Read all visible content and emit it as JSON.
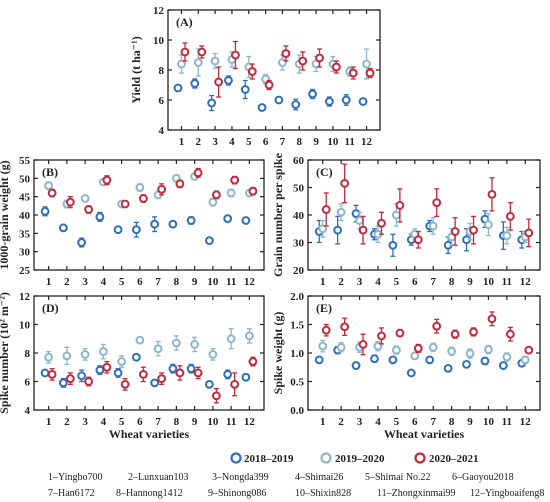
{
  "colors": {
    "s2018": "#2e6fb5",
    "s2019": "#8db6cc",
    "s2020": "#c22a3b"
  },
  "legend": [
    {
      "label": "2018–2019",
      "color": "#2e6fb5"
    },
    {
      "label": "2019–2020",
      "color": "#8db6cc"
    },
    {
      "label": "2020–2021",
      "color": "#c22a3b"
    }
  ],
  "varieties_key": [
    [
      "1–Yingbo700",
      "2–Lunxuan103",
      "3–Nongda399",
      "4–Shimai26",
      "5–Shimai No.22",
      "6–Gaoyou2018"
    ],
    [
      "7–Han6172",
      "8–Hannong1412",
      "9–Shinong086",
      "10–Shixin828",
      "11–Zhongxinmai99",
      "12–Yingboaifeng8"
    ]
  ],
  "chart_data": [
    {
      "id": "A",
      "type": "scatter",
      "panel_label": "(A)",
      "ylabel": "Yield (t ha⁻¹)",
      "xlabel": "",
      "ylim": [
        4,
        12
      ],
      "yticks": [
        4,
        6,
        8,
        10,
        12
      ],
      "x": [
        1,
        2,
        3,
        4,
        5,
        6,
        7,
        8,
        9,
        10,
        11,
        12
      ],
      "series": [
        {
          "name": "2018–2019",
          "values": [
            6.8,
            7.1,
            5.8,
            7.3,
            6.7,
            5.5,
            6.0,
            5.7,
            6.4,
            5.9,
            6.0,
            5.9
          ],
          "errors": [
            0.15,
            0.3,
            0.5,
            0.3,
            0.6,
            0.1,
            0.2,
            0.35,
            0.3,
            0.3,
            0.35,
            0.15
          ]
        },
        {
          "name": "2019–2020",
          "values": [
            8.4,
            8.5,
            8.6,
            8.7,
            8.2,
            7.4,
            8.5,
            8.4,
            8.4,
            8.4,
            7.9,
            8.4
          ],
          "errors": [
            0.6,
            0.9,
            0.5,
            0.5,
            0.7,
            0.3,
            0.5,
            0.6,
            0.5,
            0.5,
            0.3,
            1.0
          ]
        },
        {
          "name": "2020–2021",
          "values": [
            9.2,
            9.2,
            7.2,
            9.0,
            7.9,
            7.0,
            9.1,
            8.6,
            8.8,
            8.2,
            7.8,
            7.8
          ],
          "errors": [
            0.6,
            0.4,
            1.0,
            0.9,
            0.5,
            0.3,
            0.5,
            0.6,
            0.6,
            0.4,
            0.4,
            0.3
          ]
        }
      ]
    },
    {
      "id": "B",
      "type": "scatter",
      "panel_label": "(B)",
      "ylabel": "1000-grain weight (g)",
      "xlabel": "",
      "ylim": [
        25,
        55
      ],
      "yticks": [
        25,
        30,
        35,
        40,
        45,
        50,
        55
      ],
      "x": [
        1,
        2,
        3,
        4,
        5,
        6,
        7,
        8,
        9,
        10,
        11,
        12
      ],
      "series": [
        {
          "name": "2018–2019",
          "values": [
            41,
            36.5,
            32.5,
            39.5,
            36.0,
            36.0,
            37.5,
            37.5,
            38.5,
            33.0,
            39.0,
            38.5
          ],
          "errors": [
            1.2,
            0.8,
            1.2,
            1.2,
            0.5,
            2.0,
            2.0,
            0.8,
            1.0,
            0.6,
            0.5,
            0.5
          ]
        },
        {
          "name": "2019–2020",
          "values": [
            48,
            43,
            44.5,
            49,
            43,
            47.5,
            45.5,
            50,
            50.5,
            43.5,
            46,
            46
          ],
          "errors": [
            1,
            1,
            0.5,
            0.5,
            0.5,
            1,
            1,
            0.8,
            0.5,
            1,
            1,
            0.5
          ]
        },
        {
          "name": "2020–2021",
          "values": [
            46,
            43.5,
            41.5,
            49.5,
            43,
            44.5,
            47,
            48.5,
            51.5,
            45.5,
            49.5,
            46.5
          ],
          "errors": [
            1,
            1.5,
            1,
            1.2,
            0.5,
            1,
            1.5,
            1,
            1.2,
            1,
            1,
            1
          ]
        }
      ]
    },
    {
      "id": "C",
      "type": "scatter",
      "panel_label": "(C)",
      "ylabel": "Grain number per spike",
      "xlabel": "",
      "ylim": [
        20,
        60
      ],
      "yticks": [
        20,
        30,
        40,
        50,
        60
      ],
      "x": [
        1,
        2,
        3,
        4,
        5,
        6,
        7,
        8,
        9,
        10,
        11,
        12
      ],
      "series": [
        {
          "name": "2018–2019",
          "values": [
            34,
            34.5,
            40.5,
            33,
            29,
            31,
            36,
            29,
            31,
            38.5,
            32.5,
            31
          ],
          "errors": [
            4,
            5,
            3,
            2,
            4,
            2,
            2,
            3,
            4,
            3,
            5,
            3
          ]
        },
        {
          "name": "2019–2020",
          "values": [
            35,
            41,
            38,
            33,
            40,
            33,
            36,
            32,
            34,
            36.5,
            32.5,
            32
          ],
          "errors": [
            3,
            3,
            3,
            3,
            4,
            2,
            3,
            3,
            3,
            4,
            3,
            2
          ]
        },
        {
          "name": "2020–2021",
          "values": [
            42,
            51.5,
            34.5,
            37,
            43.5,
            31,
            44.5,
            34,
            34.5,
            47.5,
            39.5,
            33.5
          ],
          "errors": [
            6,
            7,
            5,
            4,
            6,
            3,
            5,
            5,
            5,
            6,
            5,
            5
          ]
        }
      ]
    },
    {
      "id": "D",
      "type": "scatter",
      "panel_label": "(D)",
      "ylabel": "Spike number (10² m⁻²)",
      "xlabel": "Wheat varieties",
      "ylim": [
        4,
        12
      ],
      "yticks": [
        4,
        6,
        8,
        10,
        12
      ],
      "x": [
        1,
        2,
        3,
        4,
        5,
        6,
        7,
        8,
        9,
        10,
        11,
        12
      ],
      "series": [
        {
          "name": "2018–2019",
          "values": [
            6.6,
            5.9,
            6.4,
            6.8,
            6.6,
            7.7,
            5.9,
            6.9,
            6.9,
            5.8,
            6.5,
            6.3
          ],
          "errors": [
            0.2,
            0.3,
            0.4,
            0.3,
            0.3,
            0.2,
            0.2,
            0.3,
            0.3,
            0.2,
            0.3,
            0.2
          ]
        },
        {
          "name": "2019–2020",
          "values": [
            7.7,
            7.8,
            7.9,
            8.1,
            7.4,
            8.9,
            8.3,
            8.7,
            8.6,
            7.9,
            9.0,
            9.2
          ],
          "errors": [
            0.4,
            0.6,
            0.4,
            0.5,
            0.4,
            0.2,
            0.5,
            0.5,
            0.5,
            0.4,
            0.7,
            0.5
          ]
        },
        {
          "name": "2020–2021",
          "values": [
            6.5,
            6.2,
            6.0,
            7.0,
            5.8,
            6.5,
            6.2,
            6.6,
            6.6,
            5.0,
            5.8,
            7.4
          ],
          "errors": [
            0.4,
            0.4,
            0.3,
            0.4,
            0.4,
            0.5,
            0.4,
            0.5,
            0.4,
            0.5,
            0.8,
            0.3
          ]
        }
      ]
    },
    {
      "id": "E",
      "type": "scatter",
      "panel_label": "(E)",
      "ylabel": "Spike weight (g)",
      "xlabel": "Wheat varieties",
      "ylim": [
        0.0,
        2.0
      ],
      "yticks": [
        0.0,
        0.5,
        1.0,
        1.5,
        2.0
      ],
      "x": [
        1,
        2,
        3,
        4,
        5,
        6,
        7,
        8,
        9,
        10,
        11,
        12
      ],
      "series": [
        {
          "name": "2018–2019",
          "values": [
            0.88,
            1.05,
            0.78,
            0.9,
            0.88,
            0.65,
            0.88,
            0.73,
            0.8,
            0.86,
            0.78,
            0.82
          ],
          "errors": [
            0.05,
            0.06,
            0.06,
            0.06,
            0.05,
            0.04,
            0.05,
            0.04,
            0.05,
            0.06,
            0.05,
            0.05
          ]
        },
        {
          "name": "2019–2020",
          "values": [
            1.12,
            1.1,
            1.1,
            1.12,
            1.05,
            0.95,
            1.1,
            1.03,
            0.99,
            1.06,
            0.93,
            0.88
          ],
          "errors": [
            0.1,
            0.08,
            0.09,
            0.08,
            0.07,
            0.06,
            0.07,
            0.07,
            0.08,
            0.07,
            0.07,
            0.06
          ]
        },
        {
          "name": "2020–2021",
          "values": [
            1.4,
            1.46,
            1.15,
            1.3,
            1.35,
            1.08,
            1.47,
            1.33,
            1.37,
            1.6,
            1.33,
            1.05
          ],
          "errors": [
            0.1,
            0.15,
            0.18,
            0.14,
            0.06,
            0.07,
            0.12,
            0.07,
            0.07,
            0.12,
            0.12,
            0.05
          ]
        }
      ]
    }
  ]
}
